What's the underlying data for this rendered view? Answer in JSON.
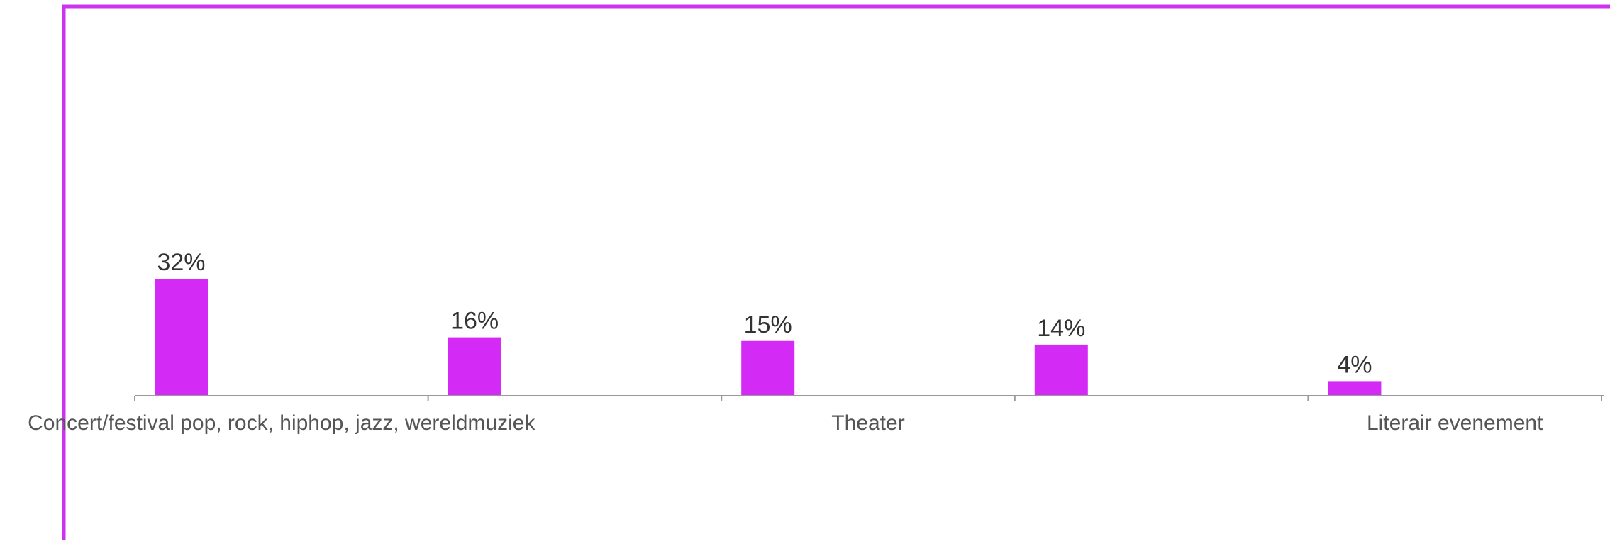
{
  "chart_data": {
    "type": "bar",
    "categories": [
      "Concert/festival pop, rock, hiphop, jazz, wereldmuziek",
      "",
      "Theater",
      "",
      "Literair evenement"
    ],
    "values": [
      32,
      16,
      15,
      14,
      4
    ],
    "value_labels": [
      "32%",
      "16%",
      "15%",
      "14%",
      "4%"
    ],
    "unit": "%",
    "title": "",
    "xlabel": "",
    "ylabel": "",
    "ylim": [
      0,
      100
    ],
    "grid": false,
    "legend": "none",
    "colors": {
      "bar": "#d42af5",
      "frame": "#cc33ee",
      "axis": "#999999"
    }
  }
}
